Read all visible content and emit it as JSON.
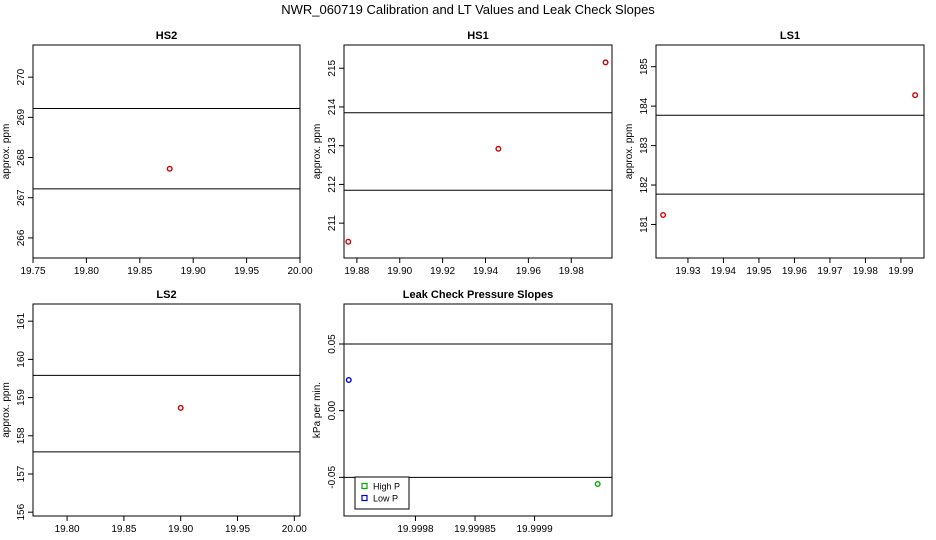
{
  "figure": {
    "title": "NWR_060719  Calibration and LT Values and Leak Check Slopes"
  },
  "chart_data": [
    {
      "type": "scatter",
      "title": "HS2",
      "ylabel": "approx. ppm",
      "xlim": [
        19.75,
        20.0
      ],
      "ylim": [
        265.5,
        270.8
      ],
      "xticks": [
        19.75,
        19.8,
        19.85,
        19.9,
        19.95,
        20.0
      ],
      "xtick_labels": [
        "19.75",
        "19.80",
        "19.85",
        "19.90",
        "19.95",
        "20.00"
      ],
      "yticks": [
        266,
        267,
        268,
        269,
        270
      ],
      "ytick_labels": [
        "266",
        "267",
        "268",
        "269",
        "270"
      ],
      "hlines": [
        267.22,
        269.22
      ],
      "series": [
        {
          "color": "#cc0000",
          "x": [
            19.878
          ],
          "y": [
            267.72
          ]
        }
      ]
    },
    {
      "type": "scatter",
      "title": "HS1",
      "ylabel": "approx. ppm",
      "xlim": [
        19.874,
        19.999
      ],
      "ylim": [
        210.1,
        215.6
      ],
      "xticks": [
        19.88,
        19.9,
        19.92,
        19.94,
        19.96,
        19.98
      ],
      "xtick_labels": [
        "19.88",
        "19.90",
        "19.92",
        "19.94",
        "19.96",
        "19.98"
      ],
      "yticks": [
        211,
        212,
        213,
        214,
        215
      ],
      "ytick_labels": [
        "211",
        "212",
        "213",
        "214",
        "215"
      ],
      "hlines": [
        211.85,
        213.85
      ],
      "series": [
        {
          "color": "#cc0000",
          "x": [
            19.876,
            19.946,
            19.996
          ],
          "y": [
            210.52,
            212.92,
            215.15
          ]
        }
      ]
    },
    {
      "type": "scatter",
      "title": "LS1",
      "ylabel": "approx. ppm",
      "xlim": [
        19.921,
        19.9965
      ],
      "ylim": [
        180.15,
        185.55
      ],
      "xticks": [
        19.93,
        19.94,
        19.95,
        19.96,
        19.97,
        19.98,
        19.99
      ],
      "xtick_labels": [
        "19.93",
        "19.94",
        "19.95",
        "19.96",
        "19.97",
        "19.98",
        "19.99"
      ],
      "yticks": [
        181,
        182,
        183,
        184,
        185
      ],
      "ytick_labels": [
        "181",
        "182",
        "183",
        "184",
        "185"
      ],
      "hlines": [
        181.77,
        183.77
      ],
      "series": [
        {
          "color": "#cc0000",
          "x": [
            19.923,
            19.994
          ],
          "y": [
            181.24,
            184.28
          ]
        }
      ]
    },
    {
      "type": "scatter",
      "title": "LS2",
      "ylabel": "approx. ppm",
      "xlim": [
        19.77,
        20.005
      ],
      "ylim": [
        155.9,
        161.45
      ],
      "xticks": [
        19.8,
        19.85,
        19.9,
        19.95,
        20.0
      ],
      "xtick_labels": [
        "19.80",
        "19.85",
        "19.90",
        "19.95",
        "20.00"
      ],
      "yticks": [
        156,
        157,
        158,
        159,
        160,
        161
      ],
      "ytick_labels": [
        "156",
        "157",
        "158",
        "159",
        "160",
        "161"
      ],
      "hlines": [
        157.58,
        159.58
      ],
      "series": [
        {
          "color": "#cc0000",
          "x": [
            19.9
          ],
          "y": [
            158.73
          ]
        }
      ]
    },
    {
      "type": "scatter",
      "title": "Leak Check Pressure Slopes",
      "ylabel": "kPa per min.",
      "xlim": [
        19.99974,
        19.999965
      ],
      "ylim": [
        -0.079,
        0.08
      ],
      "xticks": [
        19.9998,
        19.99985,
        19.9999
      ],
      "xtick_labels": [
        "19.9998",
        "19.99985",
        "19.9999"
      ],
      "yticks": [
        -0.05,
        0.0,
        0.05
      ],
      "ytick_labels": [
        "-0.05",
        "0.00",
        "0.05"
      ],
      "hlines": [
        -0.05,
        0.05
      ],
      "series": [
        {
          "name": "High P",
          "color": "#00aa00",
          "x": [
            19.999953
          ],
          "y": [
            -0.055
          ]
        },
        {
          "name": "Low P",
          "color": "#0000cc",
          "x": [
            19.999744
          ],
          "y": [
            0.023
          ]
        }
      ],
      "legend": "bottom-left"
    }
  ]
}
